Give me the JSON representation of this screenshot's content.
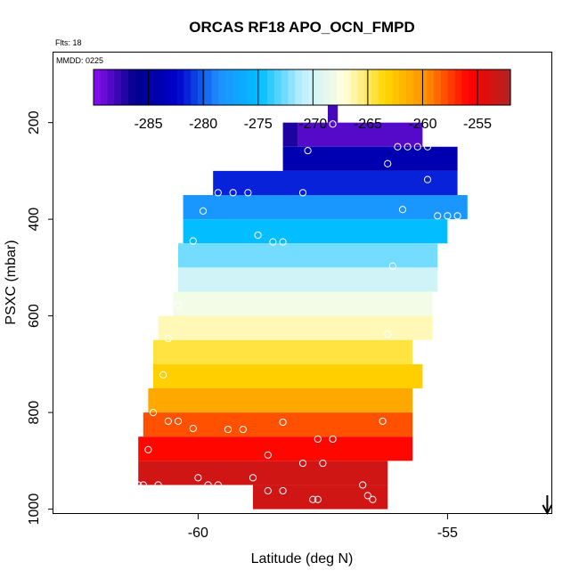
{
  "chart_data": {
    "type": "heatmap",
    "title": "ORCAS RF18 APO_OCN_FMPD",
    "flights_note": "Flts: 18",
    "date_note": "MMDD: 0225",
    "xlabel": "Latitude (deg N)",
    "ylabel": "PSXC (mbar)",
    "xlim": [
      -62.9,
      -52.9
    ],
    "ylim": [
      1010,
      55
    ],
    "y_reversed": true,
    "xticks": [
      -60,
      -55
    ],
    "yticks": [
      200,
      400,
      600,
      800,
      1000
    ],
    "colorbar": {
      "range": [
        -290,
        -252
      ],
      "ticks": [
        -285,
        -280,
        -275,
        -270,
        -265,
        -260,
        -255
      ],
      "stops": [
        "#8B10F0",
        "#00008B",
        "#0000CD",
        "#1E90FF",
        "#00BFFF",
        "#BFEFFF",
        "#FFFFE0",
        "#FFD700",
        "#FF8C00",
        "#FF0000",
        "#B22222"
      ]
    },
    "cell_height_mbar": 50,
    "rows": [
      {
        "p": 175,
        "segments": [
          [
            -57.4,
            -57.2,
            -288.0
          ]
        ]
      },
      {
        "p": 225,
        "segments": [
          [
            -58.3,
            -58.0,
            -287.0
          ],
          [
            -58.0,
            -55.5,
            -288.5
          ]
        ]
      },
      {
        "p": 275,
        "segments": [
          [
            -58.3,
            -54.8,
            -284.0
          ]
        ]
      },
      {
        "p": 325,
        "segments": [
          [
            -59.7,
            -54.8,
            -281.5
          ]
        ]
      },
      {
        "p": 375,
        "segments": [
          [
            -60.3,
            -54.6,
            -278.0
          ]
        ]
      },
      {
        "p": 425,
        "segments": [
          [
            -60.3,
            -55.0,
            -275.0
          ]
        ]
      },
      {
        "p": 475,
        "segments": [
          [
            -60.4,
            -55.2,
            -272.5
          ]
        ]
      },
      {
        "p": 525,
        "segments": [
          [
            -60.4,
            -55.2,
            -270.0
          ]
        ]
      },
      {
        "p": 575,
        "segments": [
          [
            -60.5,
            -55.3,
            -268.0
          ]
        ]
      },
      {
        "p": 625,
        "segments": [
          [
            -60.8,
            -55.3,
            -266.5
          ]
        ]
      },
      {
        "p": 675,
        "segments": [
          [
            -60.9,
            -55.7,
            -264.5
          ]
        ]
      },
      {
        "p": 725,
        "segments": [
          [
            -60.9,
            -55.5,
            -263.0
          ]
        ]
      },
      {
        "p": 775,
        "segments": [
          [
            -61.0,
            -55.7,
            -261.0
          ]
        ]
      },
      {
        "p": 825,
        "segments": [
          [
            -61.1,
            -55.7,
            -258.0
          ]
        ]
      },
      {
        "p": 875,
        "segments": [
          [
            -61.2,
            -55.7,
            -256.0
          ]
        ]
      },
      {
        "p": 925,
        "segments": [
          [
            -61.2,
            -56.2,
            -253.5
          ]
        ]
      },
      {
        "p": 975,
        "segments": [
          [
            -58.9,
            -56.2,
            -253.5
          ]
        ]
      }
    ],
    "points": [
      [
        -57.3,
        203
      ],
      [
        -57.8,
        258
      ],
      [
        -56.0,
        250
      ],
      [
        -55.8,
        250
      ],
      [
        -55.6,
        250
      ],
      [
        -55.4,
        250
      ],
      [
        -56.2,
        285
      ],
      [
        -55.4,
        318
      ],
      [
        -59.6,
        345
      ],
      [
        -59.3,
        345
      ],
      [
        -59.0,
        345
      ],
      [
        -57.9,
        345
      ],
      [
        -59.9,
        383
      ],
      [
        -55.9,
        380
      ],
      [
        -55.2,
        393
      ],
      [
        -55.0,
        393
      ],
      [
        -54.8,
        393
      ],
      [
        -60.1,
        445
      ],
      [
        -58.8,
        433
      ],
      [
        -58.5,
        447
      ],
      [
        -58.3,
        447
      ],
      [
        -56.1,
        497
      ],
      [
        -60.4,
        578
      ],
      [
        -56.2,
        638
      ],
      [
        -60.6,
        647
      ],
      [
        -60.7,
        722
      ],
      [
        -60.9,
        800
      ],
      [
        -60.6,
        818
      ],
      [
        -60.4,
        818
      ],
      [
        -60.1,
        833
      ],
      [
        -59.4,
        835
      ],
      [
        -59.1,
        835
      ],
      [
        -58.3,
        820
      ],
      [
        -57.6,
        855
      ],
      [
        -57.3,
        855
      ],
      [
        -56.3,
        818
      ],
      [
        -61.0,
        877
      ],
      [
        -58.6,
        888
      ],
      [
        -57.9,
        905
      ],
      [
        -57.5,
        905
      ],
      [
        -61.3,
        950
      ],
      [
        -61.2,
        950
      ],
      [
        -61.1,
        950
      ],
      [
        -60.8,
        950
      ],
      [
        -60.0,
        935
      ],
      [
        -59.8,
        950
      ],
      [
        -59.6,
        950
      ],
      [
        -58.9,
        935
      ],
      [
        -58.6,
        962
      ],
      [
        -58.3,
        962
      ],
      [
        -57.7,
        980
      ],
      [
        -57.6,
        980
      ],
      [
        -56.7,
        950
      ],
      [
        -56.6,
        972
      ],
      [
        -56.5,
        980
      ]
    ],
    "arrow": {
      "x": -53.0,
      "direction": "down"
    }
  }
}
